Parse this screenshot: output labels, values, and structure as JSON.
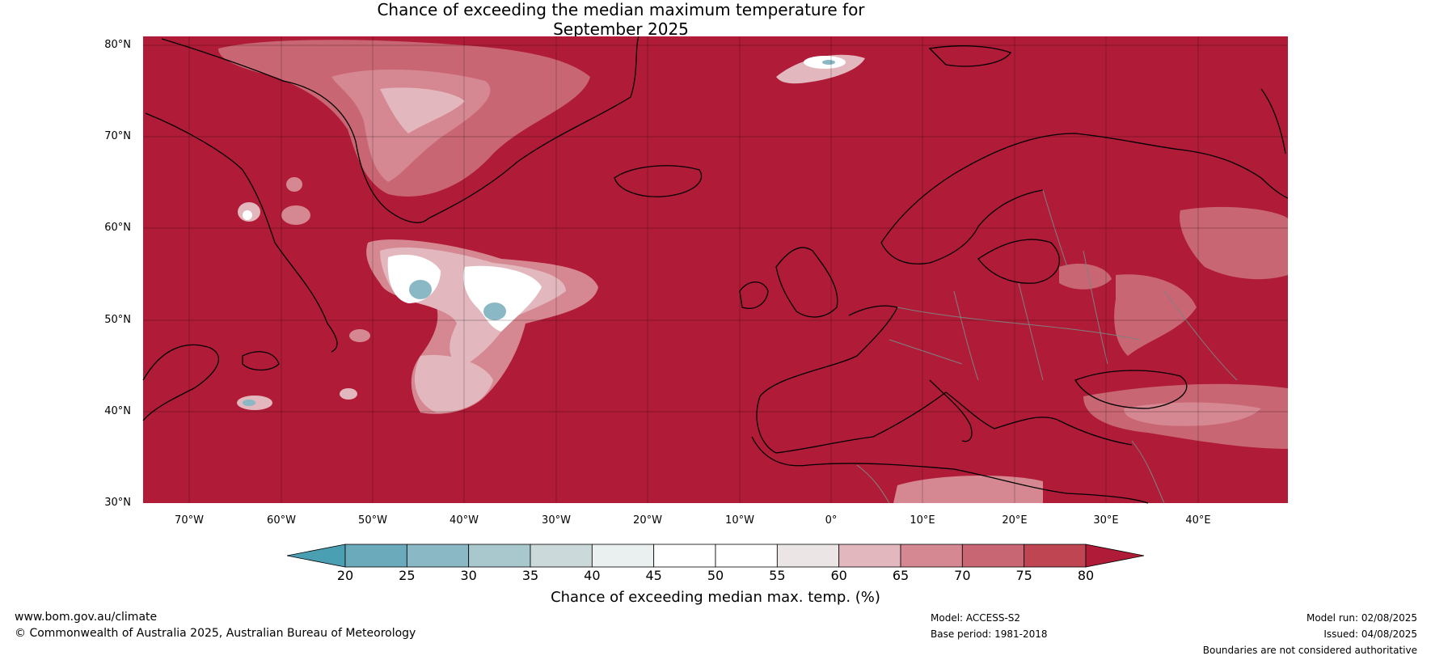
{
  "title": {
    "line1": "Chance of exceeding the median maximum temperature for",
    "line2": "September 2025"
  },
  "map": {
    "lat_labels": [
      "80°N",
      "70°N",
      "60°N",
      "50°N",
      "40°N",
      "30°N"
    ],
    "lon_labels": [
      "70°W",
      "60°W",
      "50°W",
      "40°W",
      "30°W",
      "20°W",
      "10°W",
      "0°",
      "10°E",
      "20°E",
      "30°E",
      "40°E"
    ],
    "background_color": "#B01B37",
    "grid": true
  },
  "colorbar": {
    "ticks": [
      "20",
      "25",
      "30",
      "35",
      "40",
      "45",
      "50",
      "55",
      "60",
      "65",
      "70",
      "75",
      "80"
    ],
    "colors": [
      "#4B9FB3",
      "#6AAABB",
      "#8AB8C4",
      "#A9C8CE",
      "#CCD9DB",
      "#EAF0F0",
      "#FFFFFF",
      "#FFFFFF",
      "#EBE5E6",
      "#E2B8BE",
      "#D68892",
      "#C96673",
      "#BF4553",
      "#B01B37"
    ],
    "label": "Chance of exceeding median max. temp. (%)"
  },
  "footer": {
    "website": "www.bom.gov.au/climate",
    "copyright": "© Commonwealth of Australia 2025, Australian Bureau of Meteorology",
    "model": "Model: ACCESS-S2",
    "base_period": "Base period: 1981-2018",
    "model_run": "Model run: 02/08/2025",
    "issued": "Issued: 04/08/2025",
    "disclaimer": "Boundaries are not considered authoritative"
  }
}
